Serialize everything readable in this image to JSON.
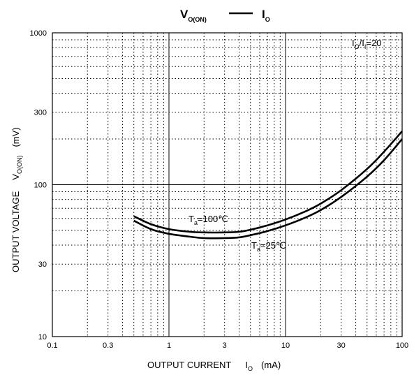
{
  "chart_data": {
    "type": "line",
    "title": {
      "left_main": "V",
      "left_sub": "O(ON)",
      "dash": "—",
      "right_main": "I",
      "right_sub": "O"
    },
    "xlabel": {
      "text": "OUTPUT CURRENT",
      "symbol": "I",
      "symbol_sub": "O",
      "unit": "(mA)"
    },
    "ylabel": {
      "text": "OUTPUT VOLTAGE",
      "symbol": "V",
      "symbol_sub": "O(ON)",
      "unit": "(mV)"
    },
    "x_scale": "log",
    "y_scale": "log",
    "xlim": [
      0.1,
      100
    ],
    "ylim": [
      10,
      1000
    ],
    "x_ticks": [
      {
        "value": 0.1,
        "label": "0.1"
      },
      {
        "value": 0.3,
        "label": "0.3"
      },
      {
        "value": 1,
        "label": "1"
      },
      {
        "value": 3,
        "label": "3"
      },
      {
        "value": 10,
        "label": "10"
      },
      {
        "value": 30,
        "label": "30"
      },
      {
        "value": 100,
        "label": "100"
      }
    ],
    "y_ticks": [
      {
        "value": 10,
        "label": "10"
      },
      {
        "value": 30,
        "label": "30"
      },
      {
        "value": 100,
        "label": "100"
      },
      {
        "value": 300,
        "label": "300"
      },
      {
        "value": 1000,
        "label": "1000"
      }
    ],
    "grid": "log minor dotted, decades solid",
    "condition": {
      "a": "I",
      "a_sub": "O",
      "slash": "/",
      "b": "I",
      "b_sub": "I",
      "rest": "=20"
    },
    "series": [
      {
        "name": "Ta=100℃",
        "label_main": "T",
        "label_sub": "a",
        "label_rest": "=100℃",
        "x": [
          0.5,
          0.7,
          1,
          1.5,
          2,
          3,
          4,
          5,
          7,
          10,
          15,
          20,
          30,
          50,
          70,
          100
        ],
        "y": [
          62,
          55,
          51,
          49,
          48.5,
          48.5,
          49,
          50.5,
          54,
          59,
          67,
          75,
          92,
          127,
          165,
          225
        ]
      },
      {
        "name": "Ta=25℃",
        "label_main": "T",
        "label_sub": "a",
        "label_rest": "=25℃",
        "x": [
          0.5,
          0.7,
          1,
          1.5,
          2,
          3,
          4,
          5,
          7,
          10,
          15,
          20,
          30,
          50,
          70,
          100
        ],
        "y": [
          58,
          51,
          47.5,
          45.5,
          44.5,
          44.5,
          45,
          46.5,
          49.5,
          54,
          61,
          68,
          83,
          113,
          145,
          200
        ]
      }
    ]
  }
}
